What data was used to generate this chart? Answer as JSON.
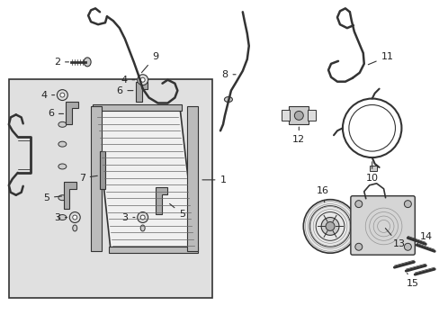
{
  "bg_color": "#ffffff",
  "box_bg": "#e0e0e0",
  "line_color": "#333333",
  "text_color": "#222222",
  "figsize": [
    4.89,
    3.6
  ],
  "dpi": 100
}
